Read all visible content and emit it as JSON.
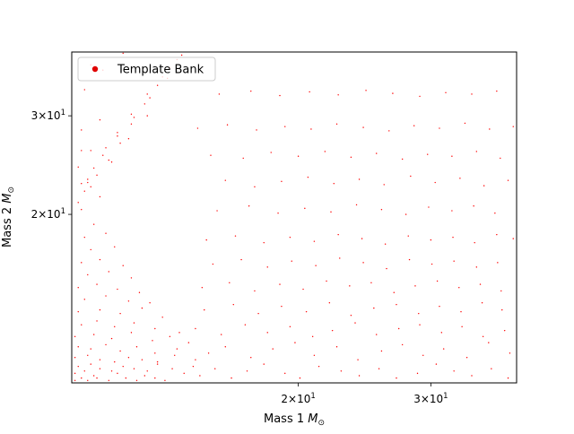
{
  "chart_data": {
    "type": "scatter",
    "title": "",
    "xlabel": {
      "text": "Mass 1 ",
      "sym": "M",
      "sub": "⊙"
    },
    "ylabel": {
      "text": "Mass 2 ",
      "sym": "M",
      "sub": "⊙"
    },
    "xscale": "log",
    "yscale": "log",
    "xlim": [
      10,
      39
    ],
    "ylim": [
      10,
      39
    ],
    "grid": false,
    "legend_position": "upper left",
    "x_ticks": [
      {
        "value": 20,
        "base": "2",
        "times": "×",
        "ten": "10",
        "exp": "1"
      },
      {
        "value": 30,
        "base": "3",
        "times": "×",
        "ten": "10",
        "exp": "1"
      }
    ],
    "y_ticks": [
      {
        "value": 20,
        "base": "2",
        "times": "×",
        "ten": "10",
        "exp": "1"
      },
      {
        "value": 30,
        "base": "3",
        "times": "×",
        "ten": "10",
        "exp": "1"
      }
    ],
    "series": [
      {
        "name": "Template Bank",
        "color": "#ff0000",
        "legend_color": "#e00000",
        "x": [
          10.1,
          10.3,
          10.5,
          10.7,
          10.1,
          10.4,
          10.8,
          11.2,
          11.5,
          11.8,
          12.2,
          12.5,
          12.9,
          13.3,
          10.2,
          10.6,
          10.9,
          11.3,
          11.7,
          12.1,
          12.6,
          13.0,
          13.6,
          14.1,
          10.1,
          10.5,
          10.9,
          11.4,
          11.9,
          12.4,
          13.0,
          13.7,
          14.5,
          10.2,
          10.6,
          11.1,
          11.6,
          12.2,
          12.9,
          13.8,
          14.6,
          10.1,
          10.7,
          11.3,
          12.0,
          12.8,
          13.5,
          14.3,
          10.3,
          10.8,
          11.4,
          12.1,
          12.9,
          13.9,
          10.2,
          10.9,
          11.6,
          12.4,
          13.2,
          10.4,
          11.1,
          11.9,
          12.7,
          10.2,
          10.8,
          11.5,
          12.3,
          10.5,
          11.2,
          12.0,
          10.3,
          10.9,
          11.7,
          10.6,
          11.4,
          10.4,
          11.1,
          10.7,
          10.3,
          10.9,
          10.5,
          10.2,
          10.6,
          10.3,
          14.8,
          15.5,
          16.3,
          17.1,
          18.0,
          19.2,
          20.1,
          21.3,
          22.8,
          24.1,
          25.6,
          27.0,
          28.8,
          30.5,
          32.2,
          34.0,
          36.1,
          38.0,
          15.2,
          16.0,
          17.3,
          18.5,
          19.8,
          21.0,
          22.5,
          24.0,
          25.8,
          27.5,
          29.3,
          31.2,
          33.5,
          35.8,
          38.2,
          14.6,
          15.8,
          17.0,
          18.2,
          19.5,
          20.9,
          22.2,
          23.8,
          25.4,
          27.2,
          29.0,
          31.0,
          33.0,
          35.2,
          37.6,
          15.0,
          16.4,
          17.7,
          19.0,
          20.5,
          22.0,
          23.5,
          25.2,
          27.0,
          28.9,
          30.8,
          32.9,
          35.1,
          37.3,
          14.9,
          16.2,
          17.5,
          18.9,
          20.3,
          21.8,
          23.4,
          25.0,
          26.8,
          28.6,
          30.6,
          32.7,
          34.9,
          37.2,
          15.4,
          16.8,
          18.2,
          19.6,
          21.1,
          22.7,
          24.4,
          26.2,
          28.1,
          30.1,
          32.2,
          34.5,
          36.8,
          15.1,
          16.5,
          18.0,
          19.5,
          21.0,
          22.6,
          24.3,
          26.1,
          28.0,
          30.0,
          32.1,
          34.3,
          36.7,
          38.6,
          15.6,
          17.2,
          18.8,
          20.4,
          22.1,
          23.9,
          25.8,
          27.8,
          29.8,
          32.0,
          34.2,
          36.5,
          10.4,
          10.8,
          11.2,
          11.6,
          12.0,
          12.5,
          13.0,
          13.5,
          14.0,
          10.3,
          10.7,
          11.1,
          11.5,
          12.0,
          12.6,
          13.2,
          13.8,
          10.5,
          11.0,
          11.5,
          12.1,
          12.7,
          13.4,
          10.2,
          10.6,
          11.3,
          11.9,
          12.6,
          10.4,
          11.0,
          11.7,
          10.3,
          10.9,
          10.6,
          16.0,
          17.5,
          19.0,
          20.6,
          22.3,
          24.1,
          26.0,
          28.2,
          30.4,
          32.8,
          35.3,
          38.0,
          15.3,
          16.9,
          18.4,
          20.0,
          21.7,
          23.5,
          25.4,
          27.5,
          29.7,
          32.0,
          34.5,
          37.1,
          14.7,
          16.1,
          17.6,
          19.2,
          20.8,
          22.5,
          24.4,
          26.4,
          28.5,
          30.8,
          33.3,
          35.9,
          38.6,
          15.7,
          17.3,
          18.9,
          20.7,
          22.6,
          24.6,
          26.7,
          29.0,
          31.4,
          34.0,
          36.7
        ],
        "y": [
          10.1,
          10.2,
          10.1,
          10.3,
          10.4,
          10.5,
          10.2,
          10.1,
          10.4,
          10.2,
          10.1,
          10.3,
          10.2,
          10.1,
          10.7,
          10.8,
          10.6,
          10.5,
          10.7,
          10.6,
          10.5,
          10.8,
          10.6,
          10.4,
          11.1,
          11.2,
          11.0,
          10.9,
          11.1,
          11.0,
          10.9,
          11.2,
          10.7,
          11.6,
          11.5,
          11.7,
          11.4,
          11.6,
          11.3,
          11.5,
          11.0,
          12.1,
          12.2,
          12.0,
          12.3,
          11.9,
          12.1,
          11.8,
          12.7,
          12.9,
          12.6,
          12.8,
          12.5,
          12.3,
          13.4,
          13.5,
          13.3,
          13.6,
          13.1,
          14.1,
          14.3,
          14.0,
          13.9,
          14.8,
          15.0,
          14.7,
          14.5,
          15.6,
          15.8,
          15.4,
          16.4,
          16.6,
          16.2,
          17.3,
          17.5,
          18.2,
          18.5,
          19.2,
          20.4,
          21.5,
          22.8,
          24.3,
          26.0,
          28.3,
          10.3,
          10.6,
          10.2,
          10.5,
          10.8,
          10.4,
          10.2,
          10.7,
          10.5,
          10.3,
          10.6,
          10.2,
          10.4,
          10.8,
          10.5,
          10.3,
          10.6,
          10.2,
          11.3,
          11.6,
          11.1,
          11.5,
          11.8,
          11.2,
          11.6,
          11.0,
          11.4,
          11.7,
          11.2,
          11.5,
          11.1,
          11.8,
          11.3,
          12.5,
          12.2,
          12.7,
          12.3,
          12.6,
          12.1,
          12.4,
          12.8,
          12.2,
          12.5,
          12.7,
          12.3,
          12.6,
          12.1,
          12.4,
          13.5,
          13.8,
          13.3,
          13.7,
          13.4,
          13.9,
          13.2,
          13.6,
          13.8,
          13.3,
          13.7,
          13.4,
          13.9,
          13.5,
          14.8,
          15.1,
          14.6,
          15.0,
          14.7,
          15.2,
          14.9,
          15.1,
          14.5,
          14.9,
          15.2,
          14.8,
          15.0,
          14.6,
          16.3,
          16.6,
          16.1,
          16.5,
          16.2,
          16.7,
          16.4,
          16.0,
          16.6,
          16.3,
          16.5,
          16.1,
          16.4,
          18.0,
          18.3,
          17.8,
          18.2,
          17.9,
          18.4,
          18.1,
          17.7,
          18.3,
          18.0,
          18.2,
          17.8,
          18.4,
          18.1,
          20.3,
          20.7,
          20.1,
          20.5,
          20.2,
          20.8,
          20.4,
          20.0,
          20.6,
          20.3,
          20.7,
          20.1,
          22.0,
          23.5,
          25.0,
          26.8,
          29.0,
          31.5,
          34.0,
          36.5,
          38.5,
          22.7,
          24.2,
          26.3,
          28.0,
          30.2,
          32.8,
          35.2,
          37.8,
          23.1,
          25.5,
          27.6,
          29.8,
          32.3,
          35.0,
          21.0,
          22.4,
          24.8,
          27.3,
          30.0,
          33.4,
          36.2,
          38.8,
          26.0,
          29.5,
          37.0,
          23.0,
          22.4,
          22.9,
          23.3,
          22.7,
          23.1,
          22.6,
          23.4,
          22.8,
          23.2,
          22.5,
          23.0,
          25.5,
          25.2,
          25.8,
          25.4,
          25.9,
          25.3,
          25.7,
          25.1,
          25.6,
          25.4,
          25.9,
          25.2,
          28.5,
          28.9,
          28.3,
          28.7,
          28.4,
          29.0,
          28.6,
          28.2,
          28.8,
          28.5,
          29.1,
          28.4,
          28.7,
          32.8,
          33.2,
          32.6,
          33.1,
          32.7,
          33.3,
          32.9,
          32.5,
          33.0,
          32.8,
          33.2
        ]
      }
    ]
  }
}
